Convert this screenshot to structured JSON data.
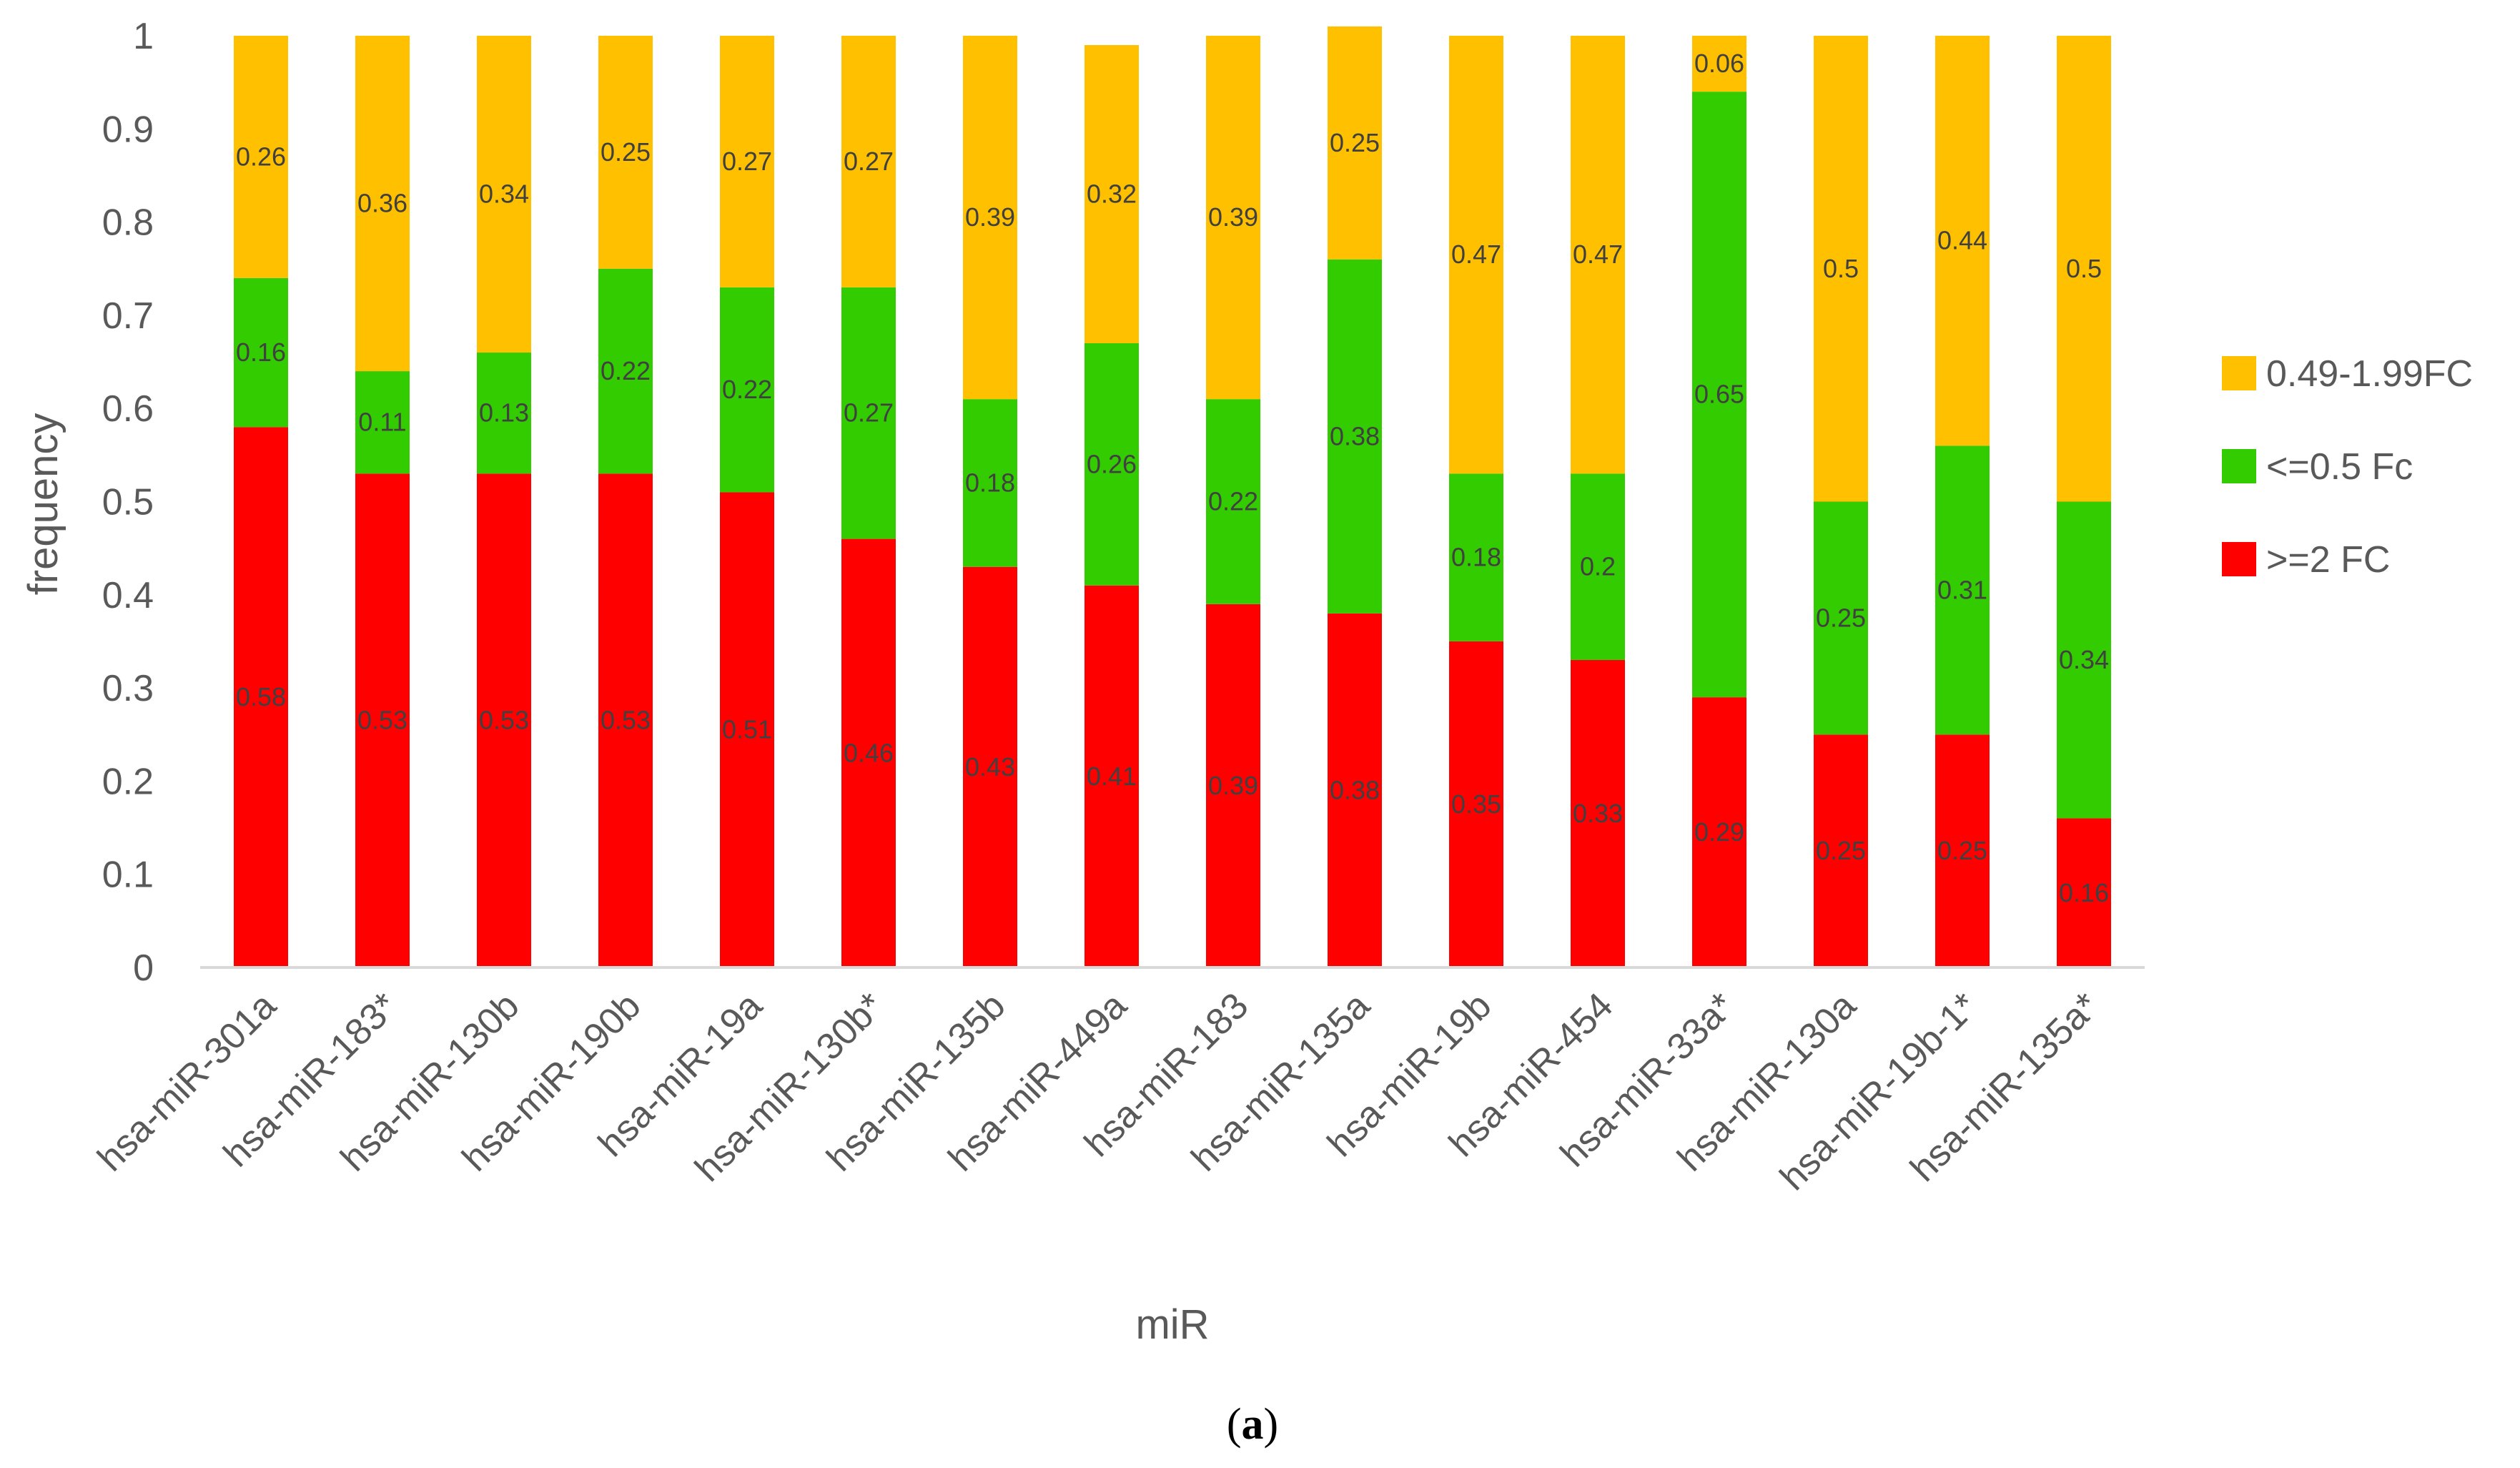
{
  "chart_data": {
    "type": "bar",
    "stacked": true,
    "title": "",
    "xlabel": "miR",
    "ylabel": "frequency",
    "ylim": [
      0,
      1
    ],
    "yticks": [
      "0",
      "0.1",
      "0.2",
      "0.3",
      "0.4",
      "0.5",
      "0.6",
      "0.7",
      "0.8",
      "0.9",
      "1"
    ],
    "grid": false,
    "legend_position": "right",
    "categories": [
      "hsa-miR-301a",
      "hsa-miR-183*",
      "hsa-miR-130b",
      "hsa-miR-190b",
      "hsa-miR-19a",
      "hsa-miR-130b*",
      "hsa-miR-135b",
      "hsa-miR-449a",
      "hsa-miR-183",
      "hsa-miR-135a",
      "hsa-miR-19b",
      "hsa-miR-454",
      "hsa-miR-33a*",
      "hsa-miR-130a",
      "hsa-miR-19b-1*",
      "hsa-miR-135a*"
    ],
    "series": [
      {
        "name": ">=2 FC",
        "color": "#FF0000",
        "values": [
          0.58,
          0.53,
          0.53,
          0.53,
          0.51,
          0.46,
          0.43,
          0.41,
          0.39,
          0.38,
          0.35,
          0.33,
          0.29,
          0.25,
          0.25,
          0.16
        ],
        "labels": [
          "0.58",
          "0.53",
          "0.53",
          "0.53",
          "0.51",
          "0.46",
          "0.43",
          "0.41",
          "0.39",
          "0.38",
          "0.35",
          "0.33",
          "0.29",
          "0.25",
          "0.25",
          "0.16"
        ]
      },
      {
        "name": "<=0.5 Fc",
        "color": "#33CC00",
        "values": [
          0.16,
          0.11,
          0.13,
          0.22,
          0.22,
          0.27,
          0.18,
          0.26,
          0.22,
          0.38,
          0.18,
          0.2,
          0.65,
          0.25,
          0.31,
          0.34
        ],
        "labels": [
          "0.16",
          "0.11",
          "0.13",
          "0.22",
          "0.22",
          "0.27",
          "0.18",
          "0.26",
          "0.22",
          "0.38",
          "0.18",
          "0.2",
          "0.65",
          "0.25",
          "0.31",
          "0.34"
        ]
      },
      {
        "name": "0.49-1.99FC",
        "color": "#FFC000",
        "values": [
          0.26,
          0.36,
          0.34,
          0.25,
          0.27,
          0.27,
          0.39,
          0.32,
          0.39,
          0.25,
          0.47,
          0.47,
          0.06,
          0.5,
          0.44,
          0.5
        ],
        "labels": [
          "0.26",
          "0.36",
          "0.34",
          "0.25",
          "0.27",
          "0.27",
          "0.39",
          "0.32",
          "0.39",
          "0.25",
          "0.47",
          "0.47",
          "0.06",
          "0.5",
          "0.44",
          "0.5"
        ]
      }
    ],
    "legend_order": [
      2,
      1,
      0
    ]
  },
  "caption": {
    "open": "(",
    "letter": "a",
    "close": ")"
  },
  "colors": {
    "axis": "#D9D9D9",
    "text": "#595959"
  }
}
